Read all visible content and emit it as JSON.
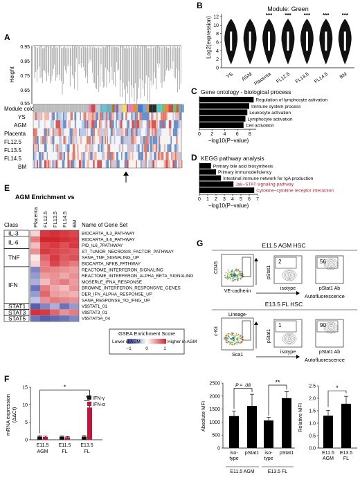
{
  "panels": {
    "A": "A",
    "B": "B",
    "C": "C",
    "D": "D",
    "E": "E",
    "F": "F",
    "G": "G"
  },
  "A": {
    "ylabel": "Height",
    "yticks": [
      "0.95",
      "0.85",
      "0.75",
      "0.65",
      "0.55"
    ],
    "row_labels": [
      "Module colors",
      "YS",
      "AGM",
      "Placenta",
      "FL12.5",
      "FL13.5",
      "FL14.5",
      "BM"
    ]
  },
  "B": {
    "title": "Module: Green",
    "ylabel": "Log2(expression)",
    "yticks": [
      "0",
      "2",
      "4",
      "6",
      "8",
      "10",
      "12"
    ],
    "categories": [
      "YS",
      "AGM",
      "Placenta",
      "FL12.5",
      "FL13.5",
      "FL14.5",
      "BM"
    ],
    "sig": [
      "",
      "",
      "***",
      "***",
      "***",
      "***",
      "***"
    ]
  },
  "C": {
    "title": "Gene ontology - biological process",
    "terms": [
      "Regulation of lymphocyte activation",
      "Immune system process",
      "Leukocyte activation",
      "Lymphocyte activation",
      "Cell activation"
    ],
    "values": [
      8.6,
      7.9,
      7.6,
      7.3,
      7.0
    ],
    "xticks": [
      "0",
      "2",
      "4",
      "6",
      "8"
    ],
    "xlabel": "−log10(P−value)"
  },
  "D": {
    "title": "KEGG pathway analysis",
    "terms": [
      "Primary bile acid biosynthesis",
      "Primary immunodeficiency",
      "Intestinal immune network for IgA production",
      "Jak–STAT signaling pathway",
      "Cytokine–cytokine receptor interaction"
    ],
    "values": [
      1.4,
      2.0,
      2.6,
      4.1,
      6.6
    ],
    "highlight_color": "#b22234",
    "xticks": [
      "0",
      "1",
      "2",
      "3",
      "4",
      "5",
      "6",
      "7"
    ],
    "xlabel": "−log10(P−value)"
  },
  "E": {
    "title": "AGM Enrichment vs",
    "class_header": "Class",
    "name_header": "Name of Gene Set",
    "columns": [
      "Placenta",
      "FL12.5",
      "FL13.5",
      "FL14.5",
      "BM"
    ],
    "classes": [
      "IL-3",
      "IL-6",
      "TNF",
      "IFN",
      "STAT1",
      "STAT3",
      "STAT5"
    ],
    "gene_sets": [
      "BIOCARTA_IL3_PATHWAY",
      "BIOCARTA_IL6_PATHWAY",
      "PID_IL6_7PATHWAY",
      "ST_TUMOR_NECROSIS_FACTOR_PATHWAY",
      "SANA_TNF_SIGNALING_UP",
      "BIOCARTA_NFKB_PATHWAY",
      "REACTOME_INTERFERON_SIGNALING",
      "REACTOME_INTERFERON_ALPHA_BETA_SIGNALING",
      "MOSERLE_IFNA_RESPONSE",
      "BROWNE_INTERFERON_RESPONSIVE_GENES",
      "DER_IFN_ALPHA_RESPONSE_UP",
      "SANA_RESPONSE_TO_IFNG_UP",
      "V$STAT1_01",
      "V$STAT3_01",
      "V$STAT5A_04"
    ],
    "legend_title": "GSEA Enrichment Score",
    "legend_lower": "Lower in AGM",
    "legend_higher": "Higher in AGM",
    "legend_ticks": [
      "−1",
      "0",
      "1"
    ]
  },
  "F": {
    "ylabel": "mRNA expression",
    "ylabel2": "(ΔΔCt)",
    "yticks": [
      "0",
      "5",
      "10",
      "15"
    ],
    "legend": [
      "IFN-γ",
      "IFN-α"
    ],
    "colors": [
      "#111111",
      "#c0143c"
    ],
    "groups": [
      "E11.5 AGM",
      "E11.5 FL",
      "E13.5 FL"
    ],
    "sig": [
      "*",
      "*"
    ]
  },
  "G": {
    "top_title": "E11.5 AGM HSC",
    "bottom_title": "E13.5 FL HSC",
    "cd45": "CD45",
    "vecad": "VE-cadherin",
    "pstat1": "pStat1",
    "isotype": "isotype",
    "pstat1ab": "pStat1 Ab",
    "autofl": "Autofluorescence",
    "top_pcts": [
      "2",
      "56"
    ],
    "lineage": "Lineage-",
    "ckit": "c-Kit",
    "sca1": "Sca1",
    "bottom_pcts": [
      "1",
      "90"
    ],
    "bar1_ylabel": "Absolute MFI",
    "bar1_yticks": [
      "0",
      "500",
      "1000",
      "1500",
      "2000",
      "2500"
    ],
    "bar1_pval": "P = .08",
    "bar1_sig": "**",
    "bar1_cat_labels": [
      "iso-\ntype",
      "pStat1",
      "iso-\ntype",
      "pStat1"
    ],
    "bar1_groups": [
      "E11.5 AGM",
      "E13.5 FL"
    ],
    "bar2_ylabel": "Relative MFI",
    "bar2_yticks": [
      "0.0",
      "0.5",
      "1.0",
      "1.5",
      "2.0",
      "2.5"
    ],
    "bar2_sig": "*",
    "bar2_cats": [
      "E11.5\nAGM",
      "E13.5\nFL"
    ]
  },
  "chart_data": [
    {
      "type": "bar",
      "title": "Gene ontology - biological process",
      "categories": [
        "Regulation of lymphocyte activation",
        "Immune system process",
        "Leukocyte activation",
        "Lymphocyte activation",
        "Cell activation"
      ],
      "values": [
        8.6,
        7.9,
        7.6,
        7.3,
        7.0
      ],
      "xlabel": "−log10(P−value)",
      "xlim": [
        0,
        9
      ]
    },
    {
      "type": "bar",
      "title": "KEGG pathway analysis",
      "categories": [
        "Primary bile acid biosynthesis",
        "Primary immunodeficiency",
        "Intestinal immune network for IgA production",
        "Jak–STAT signaling pathway",
        "Cytokine–cytokine receptor interaction"
      ],
      "values": [
        1.4,
        2.0,
        2.6,
        4.1,
        6.6
      ],
      "xlabel": "−log10(P−value)",
      "xlim": [
        0,
        7
      ]
    },
    {
      "type": "bar",
      "categories": [
        "E11.5 AGM",
        "E11.5 FL",
        "E13.5 FL"
      ],
      "series": [
        {
          "name": "IFN-γ",
          "values": [
            0.9,
            0.9,
            0.9
          ],
          "errors": [
            0.25,
            0.2,
            0.3
          ]
        },
        {
          "name": "IFN-α",
          "values": [
            0.8,
            0.7,
            9.2
          ],
          "errors": [
            0.2,
            0.2,
            1.6
          ]
        }
      ],
      "ylabel": "mRNA expression (ΔΔCt)",
      "ylim": [
        0,
        15
      ]
    },
    {
      "type": "bar",
      "categories": [
        "isotype",
        "pStat1",
        "isotype",
        "pStat1"
      ],
      "values": [
        1230,
        1620,
        1060,
        1920
      ],
      "errors": [
        190,
        450,
        120,
        250
      ],
      "ylabel": "Absolute MFI",
      "ylim": [
        0,
        2500
      ]
    },
    {
      "type": "bar",
      "categories": [
        "E11.5 AGM",
        "E13.5 FL"
      ],
      "values": [
        1.3,
        1.78
      ],
      "errors": [
        0.22,
        0.3
      ],
      "ylabel": "Relative MFI",
      "ylim": [
        0,
        2.5
      ]
    }
  ]
}
